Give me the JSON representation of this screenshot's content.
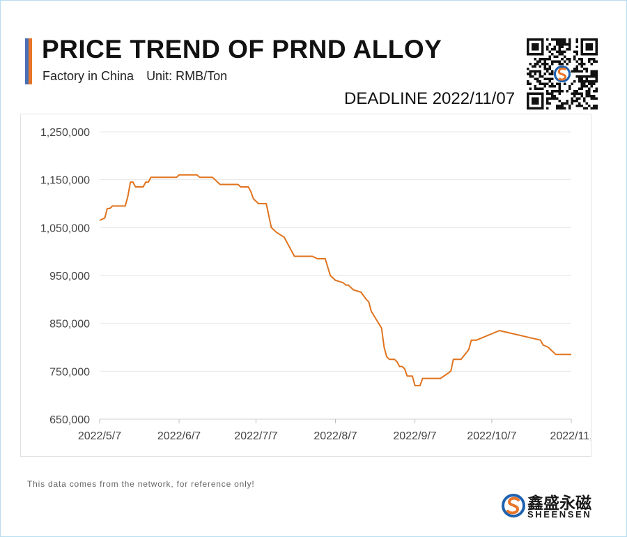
{
  "header": {
    "title": "PRICE TREND OF PRND ALLOY",
    "subtitle_factory": "Factory in China",
    "subtitle_unit": "Unit: RMB/Ton",
    "deadline": "DEADLINE 2022/11/07"
  },
  "footer": {
    "note": "This data comes from the network, for reference only!",
    "brand_cn": "鑫盛永磁",
    "brand_en": "SHEENSEN"
  },
  "colors": {
    "line": "#e0731e",
    "accent_blue": "#4a6fb5",
    "accent_orange": "#e8762a",
    "grid": "#e6e6e6",
    "border": "#b8dcef"
  },
  "icons": [
    "qr-code-icon",
    "sheensen-logo-icon"
  ],
  "chart_data": {
    "type": "line",
    "title": "PRICE TREND OF PRND ALLOY",
    "xlabel": "",
    "ylabel": "",
    "ylim": [
      650000,
      1250000
    ],
    "yticks": [
      "650,000",
      "750,000",
      "850,000",
      "950,000",
      "1,050,000",
      "1,150,000",
      "1,250,000"
    ],
    "xticks": [
      "2022/5/7",
      "2022/6/7",
      "2022/7/7",
      "2022/8/7",
      "2022/9/7",
      "2022/10/7",
      "2022/11,"
    ],
    "xlim": [
      "2022-05-07",
      "2022-11-07"
    ],
    "grid": "horizontal",
    "legend": "none",
    "series": [
      {
        "points": [
          [
            "2022-05-07",
            1065000
          ],
          [
            "2022-05-09",
            1070000
          ],
          [
            "2022-05-10",
            1090000
          ],
          [
            "2022-05-11",
            1090000
          ],
          [
            "2022-05-12",
            1095000
          ],
          [
            "2022-05-16",
            1095000
          ],
          [
            "2022-05-17",
            1095000
          ],
          [
            "2022-05-18",
            1115000
          ],
          [
            "2022-05-19",
            1145000
          ],
          [
            "2022-05-20",
            1145000
          ],
          [
            "2022-05-21",
            1135000
          ],
          [
            "2022-05-24",
            1135000
          ],
          [
            "2022-05-25",
            1145000
          ],
          [
            "2022-05-26",
            1145000
          ],
          [
            "2022-05-27",
            1155000
          ],
          [
            "2022-06-06",
            1155000
          ],
          [
            "2022-06-07",
            1160000
          ],
          [
            "2022-06-14",
            1160000
          ],
          [
            "2022-06-15",
            1155000
          ],
          [
            "2022-06-20",
            1155000
          ],
          [
            "2022-06-23",
            1140000
          ],
          [
            "2022-06-30",
            1140000
          ],
          [
            "2022-07-01",
            1135000
          ],
          [
            "2022-07-04",
            1135000
          ],
          [
            "2022-07-05",
            1125000
          ],
          [
            "2022-07-06",
            1110000
          ],
          [
            "2022-07-08",
            1100000
          ],
          [
            "2022-07-11",
            1100000
          ],
          [
            "2022-07-13",
            1050000
          ],
          [
            "2022-07-15",
            1040000
          ],
          [
            "2022-07-18",
            1030000
          ],
          [
            "2022-07-20",
            1010000
          ],
          [
            "2022-07-22",
            990000
          ],
          [
            "2022-07-29",
            990000
          ],
          [
            "2022-07-31",
            985000
          ],
          [
            "2022-08-03",
            985000
          ],
          [
            "2022-08-05",
            950000
          ],
          [
            "2022-08-07",
            940000
          ],
          [
            "2022-08-10",
            935000
          ],
          [
            "2022-08-11",
            930000
          ],
          [
            "2022-08-12",
            930000
          ],
          [
            "2022-08-14",
            920000
          ],
          [
            "2022-08-17",
            915000
          ],
          [
            "2022-08-19",
            900000
          ],
          [
            "2022-08-20",
            895000
          ],
          [
            "2022-08-21",
            875000
          ],
          [
            "2022-08-25",
            840000
          ],
          [
            "2022-08-26",
            800000
          ],
          [
            "2022-08-27",
            780000
          ],
          [
            "2022-08-28",
            775000
          ],
          [
            "2022-08-30",
            775000
          ],
          [
            "2022-08-31",
            770000
          ],
          [
            "2022-09-01",
            760000
          ],
          [
            "2022-09-02",
            760000
          ],
          [
            "2022-09-03",
            755000
          ],
          [
            "2022-09-04",
            740000
          ],
          [
            "2022-09-06",
            740000
          ],
          [
            "2022-09-07",
            720000
          ],
          [
            "2022-09-09",
            720000
          ],
          [
            "2022-09-10",
            735000
          ],
          [
            "2022-09-17",
            735000
          ],
          [
            "2022-09-21",
            750000
          ],
          [
            "2022-09-22",
            775000
          ],
          [
            "2022-09-25",
            775000
          ],
          [
            "2022-09-28",
            795000
          ],
          [
            "2022-09-29",
            815000
          ],
          [
            "2022-10-01",
            815000
          ],
          [
            "2022-10-10",
            835000
          ],
          [
            "2022-10-26",
            815000
          ],
          [
            "2022-10-27",
            805000
          ],
          [
            "2022-10-29",
            800000
          ],
          [
            "2022-11-01",
            785000
          ],
          [
            "2022-11-07",
            785000
          ]
        ]
      }
    ]
  }
}
